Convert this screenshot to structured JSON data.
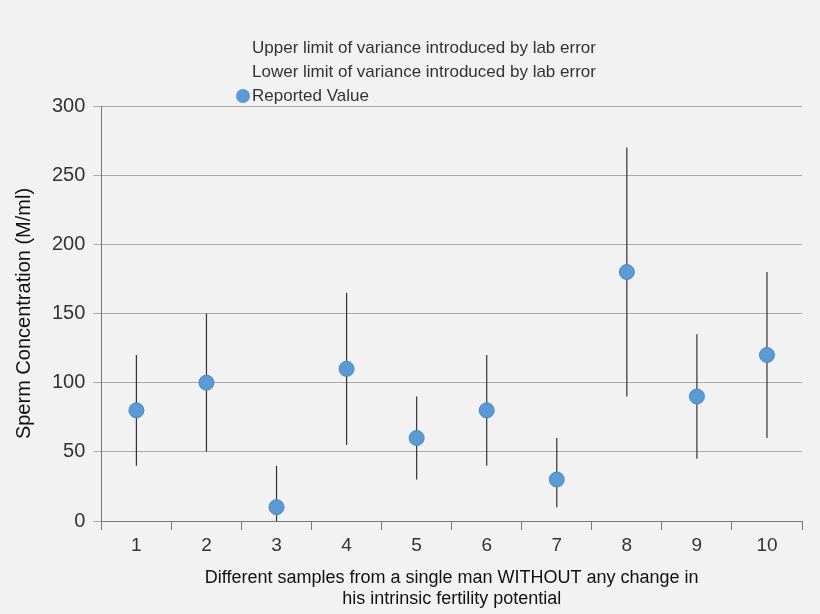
{
  "chart_data": {
    "type": "scatter",
    "x_label": [
      "Different samples from a single man WITHOUT any change in",
      "his intrinsic fertility potential"
    ],
    "y_label": "Sperm Concentration (M/ml)",
    "categories": [
      "1",
      "2",
      "3",
      "4",
      "5",
      "6",
      "7",
      "8",
      "9",
      "10"
    ],
    "series": [
      {
        "name": "Upper limit of variance introduced by lab error",
        "marker": "none",
        "values": [
          120,
          150,
          40,
          165,
          90,
          120,
          60,
          270,
          135,
          180
        ]
      },
      {
        "name": "Lower limit of variance introduced by lab error",
        "marker": "none",
        "values": [
          40,
          50,
          0,
          55,
          30,
          40,
          10,
          90,
          45,
          60
        ]
      },
      {
        "name": "Reported Value",
        "marker": "circle",
        "color": "#5b9bd5",
        "values": [
          80,
          100,
          10,
          110,
          60,
          80,
          30,
          180,
          90,
          120
        ]
      }
    ],
    "ylim": [
      0,
      300
    ],
    "yticks": [
      0,
      50,
      100,
      150,
      200,
      250,
      300
    ],
    "grid": true,
    "legend": "top"
  }
}
